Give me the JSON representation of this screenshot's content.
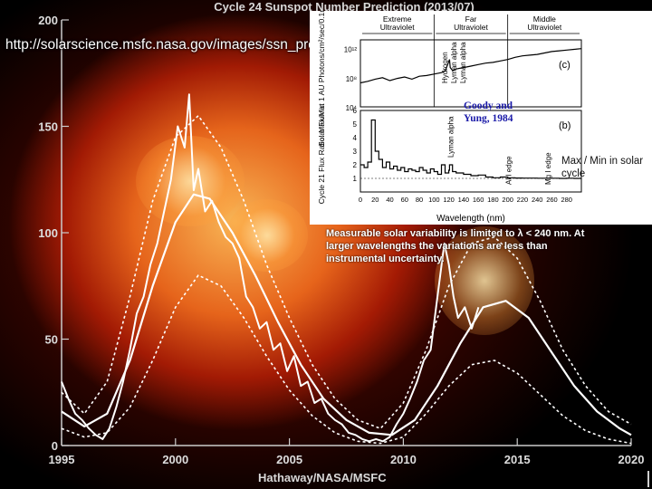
{
  "slide": {
    "url_note": "http://solarscience.msfc.nasa.gov/images/ssn_predict_l.gif",
    "maxmin_note": "Max / Min in solar cycle",
    "variability_note": "Measurable solar variability is limited to λ < 240 nm. At larger wavelengths the variations are less than instrumental uncertainty.",
    "credit": "Hathaway/NASA/MSFC"
  },
  "colors": {
    "main_line": "#ffffff",
    "background": "#000000",
    "sun_inner": "#ffbe5a",
    "sun_outer": "#b41e05",
    "inset_bg": "#ffffff",
    "inset_line": "#000000",
    "inset_citation": "#1a1aa8"
  },
  "chart_data": [
    {
      "type": "line",
      "title": "Cycle 24 Sunspot Number Prediction (2013/07)",
      "xlabel": "",
      "ylabel": "",
      "xlim": [
        1995,
        2020
      ],
      "ylim": [
        0,
        200
      ],
      "x_ticks": [
        1995,
        2000,
        2005,
        2010,
        2015,
        2020
      ],
      "y_ticks": [
        0,
        50,
        100,
        150,
        200
      ],
      "grid": false,
      "legend": "none",
      "series": [
        {
          "x": [
            1995.0,
            1995.3,
            1995.6,
            1995.9,
            1996.2,
            1996.5,
            1996.8,
            1997.1,
            1997.4,
            1997.7,
            1998.0,
            1998.3,
            1998.6,
            1998.9,
            1999.2,
            1999.5,
            1999.8,
            2000.1,
            2000.4,
            2000.6,
            2000.8,
            2001.0,
            2001.3,
            2001.6,
            2001.9,
            2002.2,
            2002.5,
            2002.8,
            2003.1,
            2003.4,
            2003.7,
            2004.0,
            2004.3,
            2004.6,
            2004.9,
            2005.2,
            2005.5,
            2005.8,
            2006.1,
            2006.4,
            2006.7,
            2007.0,
            2007.3,
            2007.6,
            2007.9,
            2008.2,
            2008.5,
            2008.8,
            2009.1,
            2009.4,
            2009.7,
            2010.0,
            2010.3,
            2010.6,
            2010.9,
            2011.2,
            2011.5,
            2011.8,
            2012.0,
            2012.2,
            2012.4,
            2012.7,
            2013.0,
            2013.3
          ],
          "y": [
            30,
            22,
            15,
            12,
            8,
            5,
            3,
            8,
            18,
            30,
            45,
            62,
            70,
            85,
            95,
            110,
            125,
            150,
            140,
            165,
            120,
            130,
            110,
            115,
            105,
            98,
            95,
            88,
            70,
            65,
            55,
            58,
            45,
            48,
            35,
            42,
            28,
            30,
            20,
            22,
            15,
            12,
            10,
            6,
            5,
            3,
            2,
            3,
            2,
            4,
            10,
            15,
            22,
            30,
            40,
            45,
            70,
            95,
            85,
            70,
            60,
            65,
            55,
            65
          ]
        },
        {
          "x": [
            1995.0,
            1996.0,
            1997.0,
            1998.0,
            1999.0,
            2000.0,
            2000.8,
            2001.5,
            2002.5,
            2003.5,
            2004.5,
            2005.5,
            2006.5,
            2007.5,
            2008.5,
            2009.5,
            2010.5,
            2011.5,
            2012.5,
            2013.5,
            2014.5,
            2015.5,
            2016.5,
            2017.5,
            2018.5,
            2019.5,
            2020.0
          ],
          "y": [
            16,
            9,
            15,
            40,
            75,
            105,
            118,
            116,
            100,
            80,
            58,
            38,
            22,
            12,
            6,
            5,
            12,
            28,
            48,
            65,
            68,
            60,
            44,
            28,
            16,
            8,
            5
          ]
        },
        {
          "x": [
            1995.0,
            1996.0,
            1997.0,
            1998.0,
            1999.0,
            2000.0,
            2001.0,
            2002.0,
            2003.0,
            2004.0,
            2005.0,
            2006.0,
            2007.0,
            2008.0,
            2009.0,
            2010.0,
            2011.0,
            2012.0,
            2013.0,
            2014.0,
            2015.0,
            2016.0,
            2017.0,
            2018.0,
            2019.0,
            2020.0
          ],
          "y": [
            25,
            15,
            30,
            70,
            115,
            145,
            155,
            140,
            115,
            85,
            60,
            38,
            22,
            12,
            8,
            20,
            45,
            75,
            95,
            98,
            88,
            68,
            45,
            28,
            16,
            10
          ]
        },
        {
          "x": [
            1995.0,
            1996.0,
            1997.0,
            1998.0,
            1999.0,
            2000.0,
            2001.0,
            2002.0,
            2003.0,
            2004.0,
            2005.0,
            2006.0,
            2007.0,
            2008.0,
            2009.0,
            2010.0,
            2011.0,
            2012.0,
            2013.0,
            2014.0,
            2015.0,
            2016.0,
            2017.0,
            2018.0,
            2019.0,
            2020.0
          ],
          "y": [
            8,
            4,
            6,
            18,
            40,
            65,
            80,
            75,
            60,
            42,
            26,
            14,
            6,
            2,
            1,
            4,
            15,
            28,
            38,
            40,
            34,
            24,
            14,
            7,
            3,
            1
          ]
        }
      ]
    },
    {
      "type": "line",
      "panel": "(c)",
      "ylabel": "Solar Flux at 1 AU Photons/cm²/sec/0.1nm",
      "xlim": [
        0,
        300
      ],
      "ylim_exponent": [
        4,
        12
      ],
      "y_ticks": [
        "10⁴",
        "10⁸",
        "10¹²"
      ],
      "region_labels": [
        "Extreme Ultraviolet",
        "Far Ultraviolet",
        "Middle Ultraviolet"
      ],
      "annotations": [
        "Hydrogen",
        "Lyman alpha",
        "Lyman alpha"
      ],
      "series": [
        {
          "x": [
            0,
            10,
            20,
            30,
            40,
            50,
            60,
            70,
            80,
            90,
            100,
            110,
            115,
            120,
            121,
            122,
            125,
            130,
            140,
            150,
            160,
            170,
            180,
            190,
            200,
            210,
            220,
            230,
            240,
            250,
            260,
            270,
            280,
            290,
            300
          ],
          "y": [
            8.3,
            8.5,
            8.8,
            9.0,
            8.6,
            8.9,
            9.1,
            8.8,
            9.2,
            9.3,
            9.5,
            9.7,
            9.9,
            11.2,
            11.5,
            10.4,
            10.0,
            10.2,
            10.4,
            10.6,
            10.8,
            11.0,
            11.1,
            11.3,
            11.5,
            11.8,
            12.0,
            12.1,
            12.2,
            12.4,
            12.6,
            12.7,
            12.8,
            12.9,
            13.0
          ]
        }
      ]
    },
    {
      "type": "line",
      "panel": "(b)",
      "ylabel": "Cycle 21 Flux Ratio: Max/Min",
      "xlabel": "Wavelength (nm)",
      "xlim": [
        0,
        300
      ],
      "ylim": [
        0,
        6
      ],
      "x_ticks": [
        0,
        20,
        40,
        60,
        80,
        100,
        120,
        140,
        160,
        180,
        200,
        220,
        240,
        260,
        280
      ],
      "y_ticks": [
        1,
        2,
        3,
        4,
        5,
        6
      ],
      "citation": "Goody and Yung, 1984",
      "annotations": [
        "Lyman alpha",
        "Al I edge",
        "Mg I edge"
      ],
      "series": [
        {
          "x": [
            0,
            5,
            10,
            15,
            20,
            25,
            30,
            35,
            40,
            45,
            50,
            55,
            60,
            65,
            70,
            75,
            80,
            85,
            90,
            95,
            100,
            105,
            110,
            115,
            120,
            121,
            125,
            130,
            140,
            150,
            160,
            170,
            180,
            190,
            200,
            210,
            220,
            230,
            240,
            250,
            260,
            270,
            280,
            290,
            300
          ],
          "y": [
            2.0,
            1.8,
            2.2,
            5.3,
            3.0,
            2.4,
            1.8,
            2.2,
            1.7,
            1.9,
            1.6,
            1.8,
            1.5,
            1.7,
            1.6,
            1.5,
            1.8,
            1.6,
            1.4,
            1.7,
            1.5,
            1.3,
            2.0,
            1.4,
            1.6,
            2.0,
            1.5,
            1.4,
            1.3,
            1.2,
            1.25,
            1.1,
            1.05,
            1.1,
            1.05,
            1.03,
            1.02,
            1.02,
            1.01,
            1.01,
            1.01,
            1.0,
            1.01,
            1.0,
            1.0
          ]
        }
      ]
    }
  ]
}
